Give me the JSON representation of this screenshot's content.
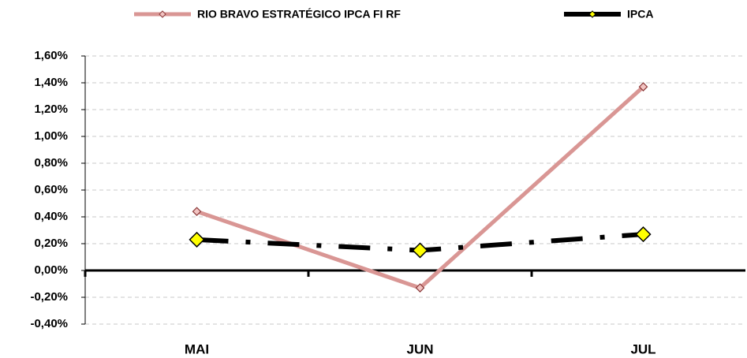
{
  "chart_data": {
    "type": "line",
    "categories": [
      "MAI",
      "JUN",
      "JUL"
    ],
    "series": [
      {
        "name": "RIO BRAVO ESTRATÉGICO IPCA FI RF",
        "color": "#d99694",
        "marker_color": "#f2c4c2",
        "values": [
          0.44,
          -0.13,
          1.37
        ]
      },
      {
        "name": "IPCA",
        "color": "#000000",
        "marker_color": "#ffff00",
        "values": [
          0.23,
          0.15,
          0.27
        ]
      }
    ],
    "ylim": [
      -0.4,
      1.6
    ],
    "yticks": [
      {
        "value": -0.4,
        "label": "-0,40%"
      },
      {
        "value": -0.2,
        "label": "-0,20%"
      },
      {
        "value": 0,
        "label": "0,00%"
      },
      {
        "value": 0.2,
        "label": "0,20%"
      },
      {
        "value": 0.4,
        "label": "0,40%"
      },
      {
        "value": 0.6,
        "label": "0,60%"
      },
      {
        "value": 0.8,
        "label": "0,80%"
      },
      {
        "value": 1.0,
        "label": "1,00%"
      },
      {
        "value": 1.2,
        "label": "1,20%"
      },
      {
        "value": 1.4,
        "label": "1,40%"
      },
      {
        "value": 1.6,
        "label": "1,60%"
      }
    ],
    "grid": true,
    "legend": "top"
  }
}
